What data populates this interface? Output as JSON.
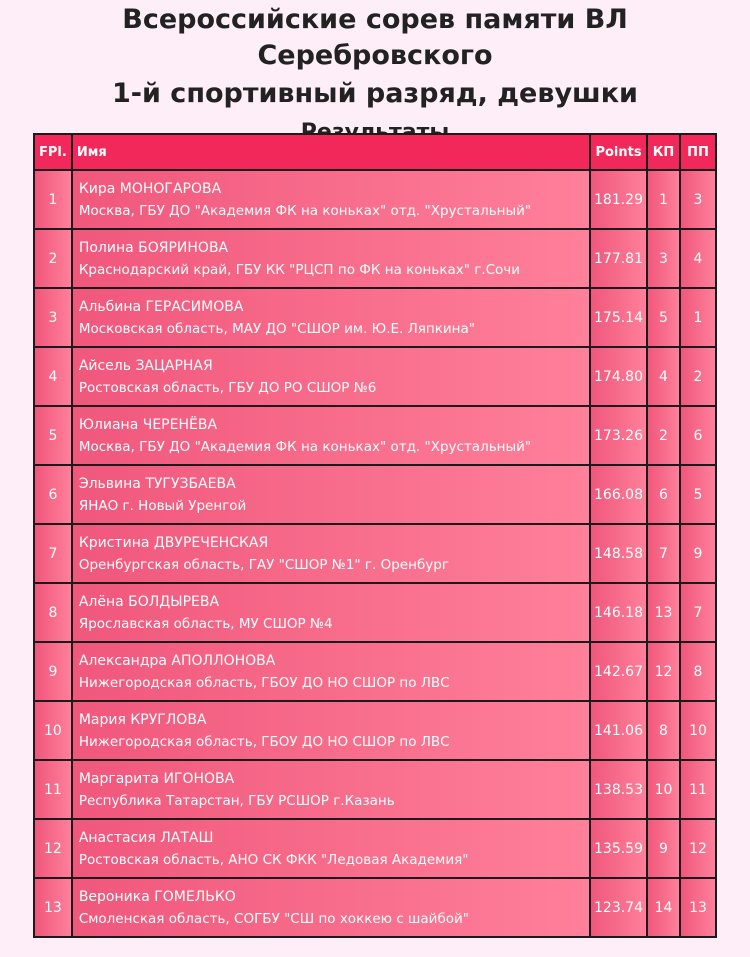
{
  "header": {
    "title_line1": "Всероссийские сорев памяти ВЛ Серебровского",
    "title_line2": "1-й спортивный разряд, девушки",
    "subtitle": "Результаты"
  },
  "table": {
    "columns": [
      "FPl.",
      "Имя",
      "Points",
      "КП",
      "ПП"
    ],
    "rows": [
      {
        "place": "1",
        "name": "Кира МОНОГАРОВА",
        "club": "Москва, ГБУ ДО \"Академия ФК на коньках\" отд. \"Хрустальный\"",
        "points": "181.29",
        "sp": "1",
        "fs": "3"
      },
      {
        "place": "2",
        "name": "Полина БОЯРИНОВА",
        "club": "Краснодарский край, ГБУ КК \"РЦСП по ФК на коньках\" г.Сочи",
        "points": "177.81",
        "sp": "3",
        "fs": "4"
      },
      {
        "place": "3",
        "name": "Альбина ГЕРАСИМОВА",
        "club": "Московская область, МАУ ДО \"СШОР им. Ю.Е. Ляпкина\"",
        "points": "175.14",
        "sp": "5",
        "fs": "1"
      },
      {
        "place": "4",
        "name": "Айсель ЗАЦАРНАЯ",
        "club": "Ростовская область, ГБУ ДО РО СШОР №6",
        "points": "174.80",
        "sp": "4",
        "fs": "2"
      },
      {
        "place": "5",
        "name": "Юлиана ЧЕРЕНЁВА",
        "club": "Москва, ГБУ ДО \"Академия ФК на коньках\" отд. \"Хрустальный\"",
        "points": "173.26",
        "sp": "2",
        "fs": "6"
      },
      {
        "place": "6",
        "name": "Эльвина ТУГУЗБАЕВА",
        "club": "ЯНАО г. Новый Уренгой",
        "points": "166.08",
        "sp": "6",
        "fs": "5"
      },
      {
        "place": "7",
        "name": "Кристина ДВУРЕЧЕНСКАЯ",
        "club": "Оренбургская область, ГАУ \"СШОР №1\" г. Оренбург",
        "points": "148.58",
        "sp": "7",
        "fs": "9"
      },
      {
        "place": "8",
        "name": "Алёна БОЛДЫРЕВА",
        "club": "Ярославская область, МУ СШОР №4",
        "points": "146.18",
        "sp": "13",
        "fs": "7"
      },
      {
        "place": "9",
        "name": "Александра АПОЛЛОНОВА",
        "club": "Нижегородская область, ГБОУ ДО НО СШОР по ЛВС",
        "points": "142.67",
        "sp": "12",
        "fs": "8"
      },
      {
        "place": "10",
        "name": "Мария КРУГЛОВА",
        "club": "Нижегородская область, ГБОУ ДО НО СШОР по ЛВС",
        "points": "141.06",
        "sp": "8",
        "fs": "10"
      },
      {
        "place": "11",
        "name": "Маргарита ИГОНОВА",
        "club": "Республика Татарстан, ГБУ РСШОР г.Казань",
        "points": "138.53",
        "sp": "10",
        "fs": "11"
      },
      {
        "place": "12",
        "name": "Анастасия ЛАТАШ",
        "club": "Ростовская область, АНО СК ФКК \"Ледовая Академия\"",
        "points": "135.59",
        "sp": "9",
        "fs": "12"
      },
      {
        "place": "13",
        "name": "Вероника ГОМЕЛЬКО",
        "club": "Смоленская область, СОГБУ \"СШ по хоккею с шайбой\"",
        "points": "123.74",
        "sp": "14",
        "fs": "13"
      }
    ]
  },
  "colors": {
    "background": "#fdeef8",
    "header_row": "#f2285a",
    "row_gradient_start": "#f0577c",
    "row_gradient_end": "#ff809a"
  }
}
